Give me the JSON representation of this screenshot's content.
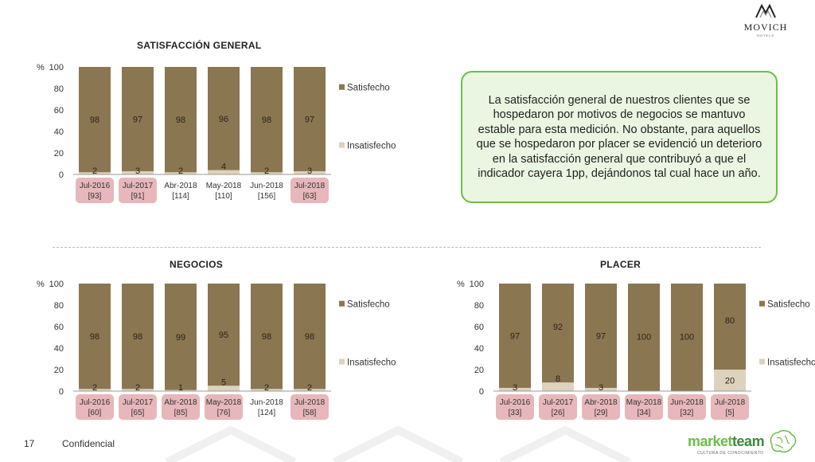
{
  "brand": {
    "name": "MOVICH",
    "sub": "HOTELS"
  },
  "callout": {
    "text": "La satisfacción general de nuestros clientes que se hospedaron por motivos de negocios se mantuvo estable para esta medición. No obstante, para aquellos que se hospedaron por placer se evidenció un deterioro en la satisfacción general que contribuyó a que el indicador cayera 1pp, dejándonos tal cual hace un año."
  },
  "footer": {
    "page_number": "17",
    "confidential": "Confidencial"
  },
  "marketteam": {
    "market": "market",
    "team": "team",
    "tagline": "CULTURA DE CONOCIMIENTO"
  },
  "colors": {
    "satisfecho": "#8b7652",
    "insatisfecho": "#ddd2bd",
    "highlight": "#e7b7bb",
    "callout_border": "#6cbe45",
    "callout_bg": "#eaf6e2"
  },
  "chart_data": [
    {
      "type": "bar",
      "stacked": true,
      "title": "SATISFACCIÓN GENERAL",
      "ylabel": "%",
      "ylim": [
        0,
        100
      ],
      "yticks": [
        "0",
        "20",
        "40",
        "60",
        "80",
        "100"
      ],
      "categories": [
        "Jul-2016",
        "Jul-2017",
        "Abr-2018",
        "May-2018",
        "Jun-2018",
        "Jul-2018"
      ],
      "bases": [
        "[93]",
        "[91]",
        "[114]",
        "[110]",
        "[156]",
        "[63]"
      ],
      "highlighted": [
        true,
        true,
        false,
        false,
        false,
        true
      ],
      "series": [
        {
          "name": "Insatisfecho",
          "values": [
            2,
            3,
            2,
            4,
            2,
            3
          ]
        },
        {
          "name": "Satisfecho",
          "values": [
            98,
            97,
            98,
            96,
            98,
            97
          ]
        }
      ],
      "legend": [
        "Satisfecho",
        "Insatisfecho"
      ]
    },
    {
      "type": "bar",
      "stacked": true,
      "title": "NEGOCIOS",
      "ylabel": "%",
      "ylim": [
        0,
        100
      ],
      "yticks": [
        "0",
        "20",
        "40",
        "60",
        "80",
        "100"
      ],
      "categories": [
        "Jul-2016",
        "Jul-2017",
        "Abr-2018",
        "May-2018",
        "Jun-2018",
        "Jul-2018"
      ],
      "bases": [
        "[60]",
        "[65]",
        "[85]",
        "[76]",
        "[124]",
        "[58]"
      ],
      "highlighted": [
        true,
        true,
        true,
        true,
        false,
        true
      ],
      "series": [
        {
          "name": "Insatisfecho",
          "values": [
            2,
            2,
            1,
            5,
            2,
            2
          ]
        },
        {
          "name": "Satisfecho",
          "values": [
            98,
            98,
            99,
            95,
            98,
            98
          ]
        }
      ],
      "legend": [
        "Satisfecho",
        "Insatisfecho"
      ]
    },
    {
      "type": "bar",
      "stacked": true,
      "title": "PLACER",
      "ylabel": "%",
      "ylim": [
        0,
        100
      ],
      "yticks": [
        "0",
        "20",
        "40",
        "60",
        "80",
        "100"
      ],
      "categories": [
        "Jul-2016",
        "Jul-2017",
        "Abr-2018",
        "May-2018",
        "Jun-2018",
        "Jul-2018"
      ],
      "bases": [
        "[33]",
        "[26]",
        "[29]",
        "[34]",
        "[32]",
        "[5]"
      ],
      "highlighted": [
        true,
        true,
        true,
        true,
        true,
        true
      ],
      "series": [
        {
          "name": "Insatisfecho",
          "values": [
            3,
            8,
            3,
            null,
            null,
            20
          ]
        },
        {
          "name": "Satisfecho",
          "values": [
            97,
            92,
            97,
            100,
            100,
            80
          ]
        }
      ],
      "legend": [
        "Satisfecho",
        "Insatisfecho"
      ]
    }
  ]
}
